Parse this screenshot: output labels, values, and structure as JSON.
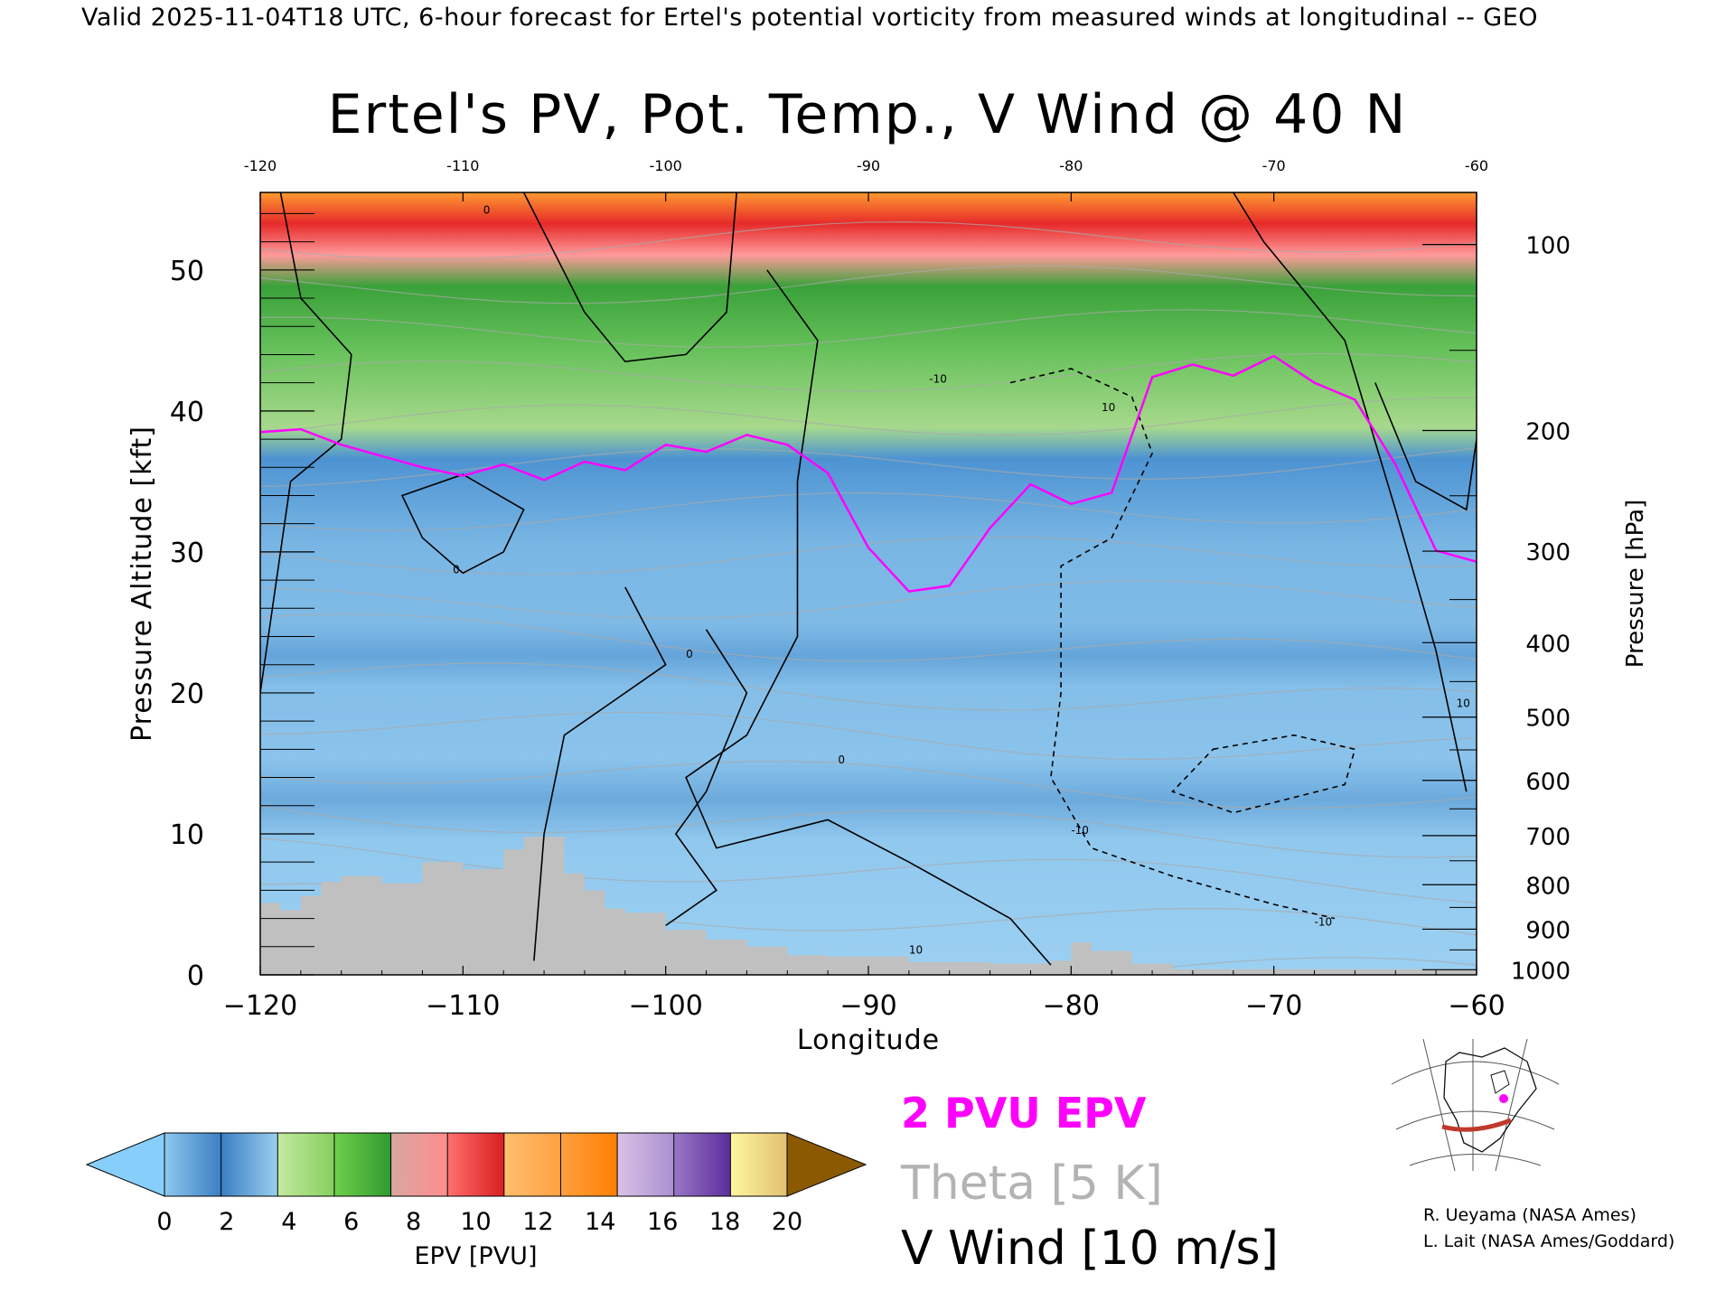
{
  "header": {
    "valid_line": "Valid 2025-11-04T18 UTC, 6-hour forecast for Ertel's potential vorticity from measured winds at longitudinal -- GEO"
  },
  "chart_data": {
    "type": "heatmap",
    "title": "Ertel's PV, Pot. Temp., V Wind @ 40 N",
    "xlabel": "Longitude",
    "ylabel": "Pressure Altitude [kft]",
    "y2label": "Pressure [hPa]",
    "xlim": [
      -120,
      -60
    ],
    "ylim": [
      0,
      55.5
    ],
    "x_ticks": [
      -120,
      -110,
      -100,
      -90,
      -80,
      -70,
      -60
    ],
    "x_tick_labels": [
      "−120",
      "−110",
      "−100",
      "−90",
      "−80",
      "−70",
      "−60"
    ],
    "top_tick_labels": [
      "-120",
      "-110",
      "-100",
      "-90",
      "-80",
      "-70",
      "-60"
    ],
    "y_ticks": [
      0,
      10,
      20,
      30,
      40,
      50
    ],
    "y_tick_labels": [
      "0",
      "10",
      "20",
      "30",
      "40",
      "50"
    ],
    "pressure_ticks": [
      {
        "hPa": 100,
        "label": "100"
      },
      {
        "hPa": 200,
        "label": "200"
      },
      {
        "hPa": 300,
        "label": "300"
      },
      {
        "hPa": 400,
        "label": "400"
      },
      {
        "hPa": 500,
        "label": "500"
      },
      {
        "hPa": 600,
        "label": "600"
      },
      {
        "hPa": 700,
        "label": "700"
      },
      {
        "hPa": 800,
        "label": "800"
      },
      {
        "hPa": 900,
        "label": "900"
      },
      {
        "hPa": 1000,
        "label": "1000"
      }
    ],
    "colorbar": {
      "label": "EPV [PVU]",
      "ticks": [
        "0",
        "2",
        "4",
        "6",
        "8",
        "10",
        "12",
        "14",
        "16",
        "18",
        "20"
      ],
      "under_color": "#87cefa",
      "over_color": "#8b5a00",
      "segments": [
        [
          "#8ec8ee",
          "#3a7ec4"
        ],
        [
          "#3a7ec4",
          "#9bd0ee"
        ],
        [
          "#c4e9a0",
          "#86cf5c"
        ],
        [
          "#6fcf4c",
          "#2f9a2f"
        ],
        [
          "#d9a7a0",
          "#ff8d8d"
        ],
        [
          "#ff7070",
          "#d81e1e"
        ],
        [
          "#ffbf70",
          "#ffa040"
        ],
        [
          "#ffa040",
          "#ff7f00"
        ],
        [
          "#d9c2e6",
          "#a98fcf"
        ],
        [
          "#9a76c8",
          "#5a2d9a"
        ],
        [
          "#fff6a0",
          "#e0c070"
        ]
      ]
    },
    "series": [
      {
        "name": "2 PVU EPV",
        "color": "#ff00ff",
        "points": [
          [
            -120,
            38.5
          ],
          [
            -118,
            38.7
          ],
          [
            -116,
            37.6
          ],
          [
            -114,
            36.8
          ],
          [
            -112,
            36.0
          ],
          [
            -110,
            35.4
          ],
          [
            -108,
            36.2
          ],
          [
            -106,
            35.1
          ],
          [
            -104,
            36.4
          ],
          [
            -102,
            35.8
          ],
          [
            -100,
            37.6
          ],
          [
            -98,
            37.1
          ],
          [
            -96,
            38.3
          ],
          [
            -94,
            37.6
          ],
          [
            -92,
            35.6
          ],
          [
            -90,
            30.3
          ],
          [
            -88,
            27.2
          ],
          [
            -86,
            27.6
          ],
          [
            -84,
            31.7
          ],
          [
            -82,
            34.8
          ],
          [
            -80,
            33.4
          ],
          [
            -78,
            34.2
          ],
          [
            -76,
            42.4
          ],
          [
            -74,
            43.3
          ],
          [
            -72,
            42.5
          ],
          [
            -70,
            43.9
          ],
          [
            -68,
            42.0
          ],
          [
            -66,
            40.8
          ],
          [
            -64,
            36.2
          ],
          [
            -62,
            30.1
          ],
          [
            -60,
            29.3
          ]
        ]
      },
      {
        "name": "Theta [5 K]",
        "color": "#aaaaaa",
        "levels": [
          300,
          305,
          310,
          315,
          320,
          325,
          330,
          335,
          340,
          345,
          350,
          355,
          360,
          370,
          380,
          400,
          430
        ]
      },
      {
        "name": "V Wind [10 m/s]",
        "color": "#000000",
        "contour_labels": [
          "0",
          "10",
          "-10"
        ]
      }
    ],
    "terrain_color": "#c0c0c0",
    "terrain": [
      [
        -120,
        5.1
      ],
      [
        -119,
        4.6
      ],
      [
        -118,
        5.6
      ],
      [
        -117,
        6.6
      ],
      [
        -116,
        7.0
      ],
      [
        -114,
        6.5
      ],
      [
        -112,
        8.0
      ],
      [
        -110,
        7.5
      ],
      [
        -108,
        8.9
      ],
      [
        -107,
        9.8
      ],
      [
        -105,
        7.2
      ],
      [
        -104,
        6.0
      ],
      [
        -103,
        4.7
      ],
      [
        -102,
        4.4
      ],
      [
        -100,
        3.2
      ],
      [
        -98,
        2.5
      ],
      [
        -96,
        2.0
      ],
      [
        -94,
        1.4
      ],
      [
        -92,
        1.3
      ],
      [
        -88,
        0.9
      ],
      [
        -84,
        0.8
      ],
      [
        -81,
        1.0
      ],
      [
        -80,
        2.3
      ],
      [
        -79,
        1.7
      ],
      [
        -77,
        0.8
      ],
      [
        -75,
        0.4
      ],
      [
        -60,
        0.0
      ]
    ],
    "legend": {
      "pvu": "2 PVU EPV",
      "theta": "Theta [5 K]",
      "vwind": "V Wind [10 m/s]"
    }
  },
  "credits": {
    "line1": "R. Ueyama (NASA Ames)",
    "line2": "L. Lait (NASA Ames/Goddard)"
  }
}
